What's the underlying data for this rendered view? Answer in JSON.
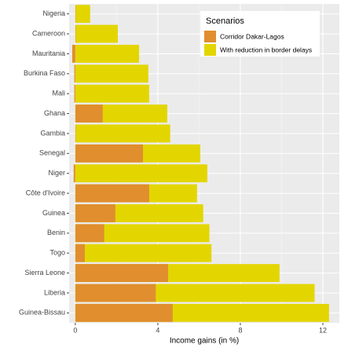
{
  "chart_data": {
    "type": "bar",
    "orientation": "horizontal",
    "barmode": "overlay",
    "x_label": "Income gains (in %)",
    "legend_title": "Scenarios",
    "legend_position": "top-right",
    "categories": [
      "Nigeria",
      "Cameroon",
      "Mauritania",
      "Burkina Faso",
      "Mali",
      "Ghana",
      "Gambia",
      "Senegal",
      "Niger",
      "Côte d'Ivoire",
      "Guinea",
      "Benin",
      "Togo",
      "Sierra Leone",
      "Liberia",
      "Guinea-Bissau"
    ],
    "series": [
      {
        "name": "With reduction in border delays",
        "color": "#e3d600",
        "values": [
          0.72,
          2.06,
          3.09,
          3.54,
          3.58,
          4.46,
          4.6,
          6.06,
          6.4,
          5.9,
          6.2,
          6.5,
          6.6,
          9.9,
          11.6,
          12.3
        ]
      },
      {
        "name": "Corridor Dakar-Lagos",
        "color": "#e08e2e",
        "values": [
          0.02,
          0.02,
          -0.15,
          -0.05,
          -0.05,
          1.33,
          0.02,
          3.28,
          -0.08,
          3.58,
          1.94,
          1.4,
          0.46,
          4.5,
          3.9,
          4.72
        ]
      }
    ],
    "xlim": [
      -0.3,
      12.8
    ],
    "xticks": [
      0,
      4,
      8,
      12
    ],
    "grid": true
  }
}
